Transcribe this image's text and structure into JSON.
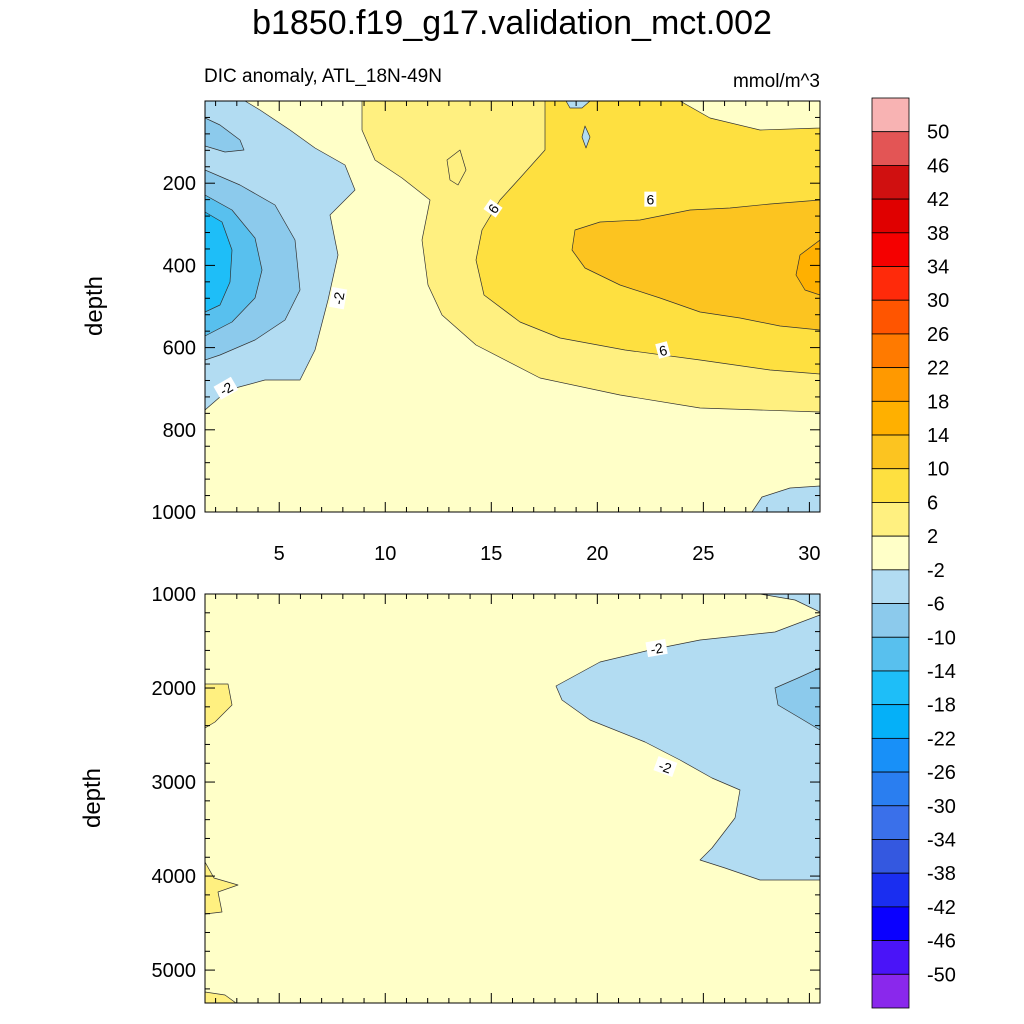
{
  "chart_data": {
    "type": "contour",
    "title": "b1850.f19_g17.validation_mct.002",
    "subtitle_left": "DIC anomaly, ATL_18N-49N",
    "subtitle_right": "mmol/m^3",
    "x_ticks": [
      "5",
      "10",
      "15",
      "20",
      "25",
      "30"
    ],
    "x_range": [
      1.5,
      30.5
    ],
    "panels": [
      {
        "name": "upper",
        "ylabel": "depth",
        "ylim": [
          0,
          1000
        ],
        "y_ticks": [
          "200",
          "400",
          "600",
          "800",
          "1000"
        ],
        "contour_labels": [
          {
            "text": "-2",
            "x": 7.8,
            "depth": 480,
            "rot": -80
          },
          {
            "text": "-2",
            "x": 2.5,
            "depth": 700,
            "rot": -30
          },
          {
            "text": "6",
            "x": 15.1,
            "depth": 262,
            "rot": -55
          },
          {
            "text": "6",
            "x": 22.5,
            "depth": 240,
            "rot": 0
          },
          {
            "text": "6",
            "x": 23.1,
            "depth": 607,
            "rot": -15
          }
        ]
      },
      {
        "name": "lower",
        "ylabel": "depth",
        "ylim": [
          1000,
          5350
        ],
        "y_ticks": [
          "1000",
          "2000",
          "3000",
          "4000",
          "5000"
        ],
        "contour_labels": [
          {
            "text": "-2",
            "x": 22.8,
            "depth": 1580,
            "rot": -10
          },
          {
            "text": "-2",
            "x": 23.2,
            "depth": 2840,
            "rot": 20
          }
        ]
      }
    ],
    "colorbar": {
      "levels": [
        "50",
        "46",
        "42",
        "38",
        "34",
        "30",
        "26",
        "22",
        "18",
        "14",
        "10",
        "6",
        "2",
        "-2",
        "-6",
        "-10",
        "-14",
        "-18",
        "-22",
        "-26",
        "-30",
        "-34",
        "-38",
        "-42",
        "-46",
        "-50"
      ],
      "colors": [
        "#f8b3b3",
        "#e35555",
        "#d01010",
        "#e00000",
        "#f50000",
        "#ff2a0a",
        "#ff5500",
        "#ff7a00",
        "#ff9900",
        "#ffb000",
        "#fcc420",
        "#fee040",
        "#fff080",
        "#ffffc8",
        "#b2dcf2",
        "#8ccaec",
        "#58c0ee",
        "#1ebef8",
        "#05b0f8",
        "#1890f8",
        "#2a7ef0",
        "#3a70ea",
        "#3458e0",
        "#1a2ef0",
        "#0a00ff",
        "#4a14f8",
        "#8a28ec"
      ]
    }
  }
}
